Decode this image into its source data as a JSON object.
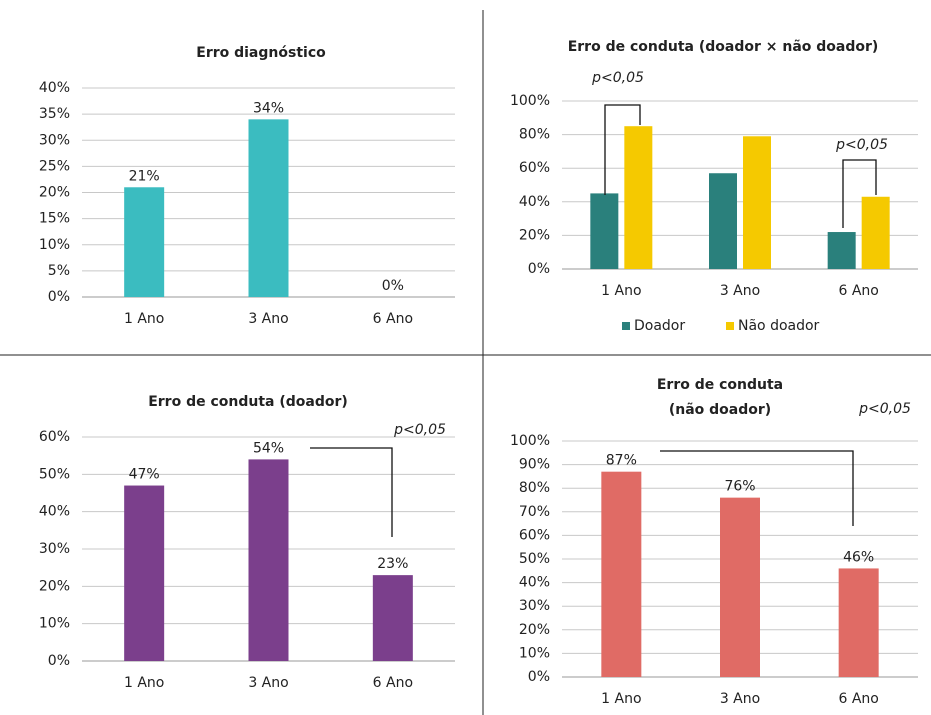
{
  "chart_data": [
    {
      "type": "bar",
      "title": [
        "Erro diagnóstico"
      ],
      "categories": [
        "1 Ano",
        "3 Ano",
        "6 Ano"
      ],
      "series": [
        {
          "name": "Erro diagnóstico",
          "color": "#3bbcc0",
          "values": [
            21,
            34,
            0
          ],
          "value_labels": [
            "21%",
            "34%",
            "0%"
          ]
        }
      ],
      "ylim": [
        0,
        40
      ],
      "yticks": [
        {
          "value": 0,
          "label": "0%"
        },
        {
          "value": 5,
          "label": "5%"
        },
        {
          "value": 10,
          "label": "10%"
        },
        {
          "value": 15,
          "label": "15%"
        },
        {
          "value": 20,
          "label": "20%"
        },
        {
          "value": 25,
          "label": "25%"
        },
        {
          "value": 30,
          "label": "30%"
        },
        {
          "value": 35,
          "label": "35%"
        },
        {
          "value": 40,
          "label": "40%"
        }
      ],
      "grid": true,
      "legend": false,
      "annotations": []
    },
    {
      "type": "bar",
      "title": [
        "Erro de conduta (doador × não doador)"
      ],
      "categories": [
        "1 Ano",
        "3 Ano",
        "6 Ano"
      ],
      "series": [
        {
          "name": "Doador",
          "color": "#2a807c",
          "values": [
            45,
            57,
            22
          ]
        },
        {
          "name": "Não doador",
          "color": "#f5c900",
          "values": [
            85,
            79,
            43
          ]
        }
      ],
      "ylim": [
        0,
        100
      ],
      "yticks": [
        {
          "value": 0,
          "label": "0%"
        },
        {
          "value": 20,
          "label": "20%"
        },
        {
          "value": 40,
          "label": "40%"
        },
        {
          "value": 60,
          "label": "60%"
        },
        {
          "value": 80,
          "label": "80%"
        },
        {
          "value": 100,
          "label": "100%"
        }
      ],
      "grid": true,
      "legend": "bottom",
      "annotations": [
        "p<0,05",
        "p<0,05"
      ]
    },
    {
      "type": "bar",
      "title": [
        "Erro de conduta (doador)"
      ],
      "categories": [
        "1 Ano",
        "3 Ano",
        "6 Ano"
      ],
      "series": [
        {
          "name": "Erro de conduta (doador)",
          "color": "#7b3f8c",
          "values": [
            47,
            54,
            23
          ],
          "value_labels": [
            "47%",
            "54%",
            "23%"
          ]
        }
      ],
      "ylim": [
        0,
        60
      ],
      "yticks": [
        {
          "value": 0,
          "label": "0%"
        },
        {
          "value": 10,
          "label": "10%"
        },
        {
          "value": 20,
          "label": "20%"
        },
        {
          "value": 30,
          "label": "30%"
        },
        {
          "value": 40,
          "label": "40%"
        },
        {
          "value": 50,
          "label": "50%"
        },
        {
          "value": 60,
          "label": "60%"
        }
      ],
      "grid": true,
      "legend": false,
      "annotations": [
        "p<0,05"
      ]
    },
    {
      "type": "bar",
      "title": [
        "Erro de conduta",
        "(não doador)"
      ],
      "categories": [
        "1 Ano",
        "3 Ano",
        "6 Ano"
      ],
      "series": [
        {
          "name": "Erro de conduta (não doador)",
          "color": "#e06b65",
          "values": [
            87,
            76,
            46
          ],
          "value_labels": [
            "87%",
            "76%",
            "46%"
          ]
        }
      ],
      "ylim": [
        0,
        100
      ],
      "yticks": [
        {
          "value": 0,
          "label": "0%"
        },
        {
          "value": 10,
          "label": "10%"
        },
        {
          "value": 20,
          "label": "20%"
        },
        {
          "value": 30,
          "label": "30%"
        },
        {
          "value": 40,
          "label": "40%"
        },
        {
          "value": 50,
          "label": "50%"
        },
        {
          "value": 60,
          "label": "60%"
        },
        {
          "value": 70,
          "label": "70%"
        },
        {
          "value": 80,
          "label": "80%"
        },
        {
          "value": 90,
          "label": "90%"
        },
        {
          "value": 100,
          "label": "100%"
        }
      ],
      "grid": true,
      "legend": false,
      "annotations": [
        "p<0,05"
      ]
    }
  ]
}
